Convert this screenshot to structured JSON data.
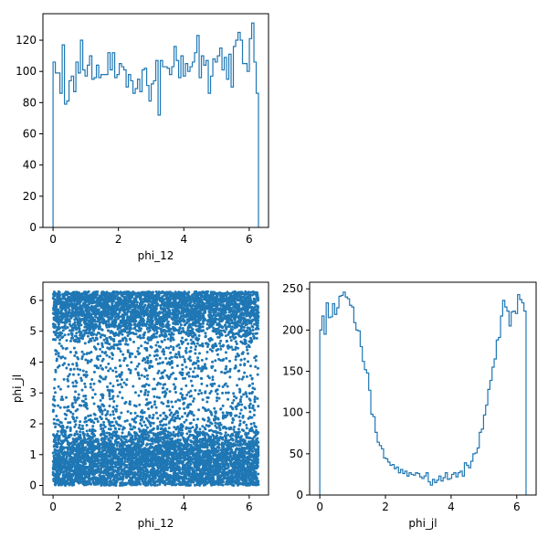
{
  "chart_data": [
    {
      "type": "histogram",
      "histtype": "step",
      "xlabel": "phi_12",
      "ylabel": "",
      "xlim": [
        -0.31,
        6.59
      ],
      "ylim": [
        0,
        137
      ],
      "xticks": [
        0,
        2,
        4,
        6
      ],
      "yticks": [
        0,
        20,
        40,
        60,
        80,
        100,
        120
      ],
      "color": "#1f77b4",
      "bin_range": [
        0,
        6.2832
      ],
      "counts": [
        106,
        99,
        99,
        86,
        117,
        79,
        81,
        94,
        97,
        87,
        106,
        99,
        120,
        101,
        97,
        104,
        110,
        95,
        96,
        104,
        96,
        98,
        98,
        98,
        112,
        101,
        112,
        96,
        98,
        105,
        103,
        101,
        90,
        98,
        94,
        86,
        89,
        95,
        87,
        101,
        102,
        91,
        81,
        92,
        94,
        107,
        72,
        107,
        103,
        103,
        102,
        98,
        103,
        116,
        107,
        96,
        110,
        97,
        105,
        100,
        103,
        106,
        112,
        123,
        96,
        110,
        104,
        107,
        86,
        97,
        108,
        106,
        110,
        115,
        101,
        109,
        95,
        111,
        90,
        116,
        120,
        125,
        120,
        105,
        105,
        100,
        121,
        131,
        106,
        86
      ]
    },
    {
      "type": "scatter",
      "xlabel": "phi_12",
      "ylabel": "phi_jl",
      "xlim": [
        -0.31,
        6.59
      ],
      "ylim": [
        -0.31,
        6.59
      ],
      "xticks": [
        0,
        2,
        4,
        6
      ],
      "yticks": [
        0,
        1,
        2,
        3,
        4,
        5,
        6
      ],
      "color": "#1f77b4",
      "marker_size": 1.5,
      "n_points": 9000,
      "x_distribution": "uniform",
      "x_range": [
        0,
        6.2832
      ],
      "y_range": [
        0,
        6.2832
      ],
      "y_density_source": "phi_jl histogram counts"
    },
    {
      "type": "histogram",
      "histtype": "step",
      "xlabel": "phi_jl",
      "ylabel": "",
      "xlim": [
        -0.31,
        6.59
      ],
      "ylim": [
        0,
        258
      ],
      "xticks": [
        0,
        2,
        4,
        6
      ],
      "yticks": [
        0,
        50,
        100,
        150,
        200,
        250
      ],
      "color": "#1f77b4",
      "bin_range": [
        0,
        6.2832
      ],
      "counts": [
        200,
        217,
        195,
        233,
        215,
        216,
        232,
        219,
        227,
        241,
        242,
        246,
        240,
        238,
        230,
        228,
        209,
        200,
        199,
        180,
        162,
        152,
        148,
        127,
        98,
        95,
        76,
        64,
        60,
        56,
        45,
        44,
        40,
        36,
        37,
        32,
        34,
        27,
        31,
        26,
        29,
        23,
        27,
        25,
        24,
        27,
        26,
        22,
        20,
        23,
        27,
        16,
        12,
        19,
        15,
        18,
        23,
        17,
        21,
        27,
        19,
        20,
        25,
        27,
        22,
        27,
        29,
        23,
        39,
        36,
        33,
        41,
        50,
        51,
        57,
        76,
        80,
        97,
        109,
        128,
        139,
        155,
        165,
        188,
        191,
        217,
        236,
        228,
        223,
        205,
        222,
        223,
        220,
        243,
        237,
        233,
        223
      ]
    }
  ]
}
